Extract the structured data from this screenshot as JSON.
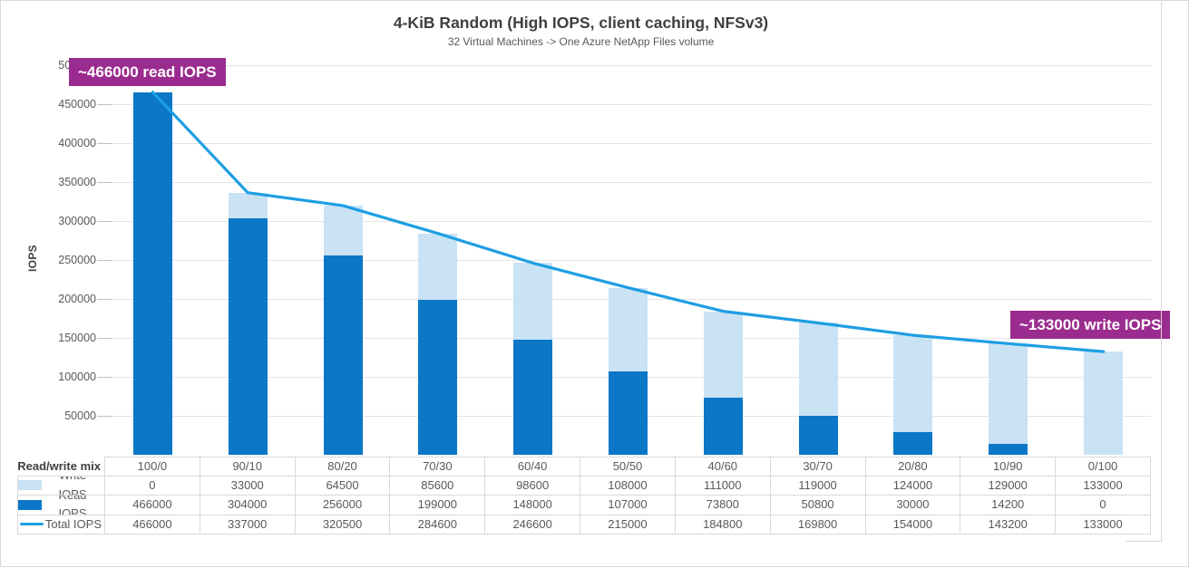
{
  "title": "4-KiB Random (High IOPS, client caching, NFSv3)",
  "subtitle": "32 Virtual Machines -> One Azure NetApp Files volume",
  "y_axis_label": "IOPS",
  "annotations": {
    "read": "~466000 read IOPS",
    "write": "~133000 write IOPS"
  },
  "table": {
    "header_label": "Read/write mix"
  },
  "colors": {
    "read_bar": "#0B77C6",
    "write_bar": "#C9E3F5",
    "total_line": "#1E9EE3",
    "annotation_bg": "#9B2C8F",
    "grid": "#E3E3E3",
    "border": "#D9D9D9",
    "text": "#595959",
    "title_text": "#3F3F3F"
  },
  "chart_data": {
    "type": "bar",
    "subtype": "stacked-bars-with-line-overlay",
    "title": "4-KiB Random (High IOPS, client caching, NFSv3)",
    "subtitle": "32 Virtual Machines -> One Azure NetApp Files volume",
    "xlabel": "Read/write mix",
    "ylabel": "IOPS",
    "ylim": [
      0,
      500000
    ],
    "ytick_interval": 50000,
    "grid": "horizontal",
    "legend_position": "table-left",
    "categories": [
      "100/0",
      "90/10",
      "80/20",
      "70/30",
      "60/40",
      "50/50",
      "40/60",
      "30/70",
      "20/80",
      "10/90",
      "0/100"
    ],
    "series": [
      {
        "name": "Write IOPS",
        "type": "bar",
        "stack": "top",
        "color": "#C9E3F5",
        "values": [
          0,
          33000,
          64500,
          85600,
          98600,
          108000,
          111000,
          119000,
          124000,
          129000,
          133000
        ]
      },
      {
        "name": "Read IOPS",
        "type": "bar",
        "stack": "bottom",
        "color": "#0B77C6",
        "values": [
          466000,
          304000,
          256000,
          199000,
          148000,
          107000,
          73800,
          50800,
          30000,
          14200,
          0
        ]
      },
      {
        "name": "Total IOPS",
        "type": "line",
        "color": "#1E9EE3",
        "values": [
          466000,
          337000,
          320500,
          284600,
          246600,
          215000,
          184800,
          169800,
          154000,
          143200,
          133000
        ]
      }
    ]
  }
}
